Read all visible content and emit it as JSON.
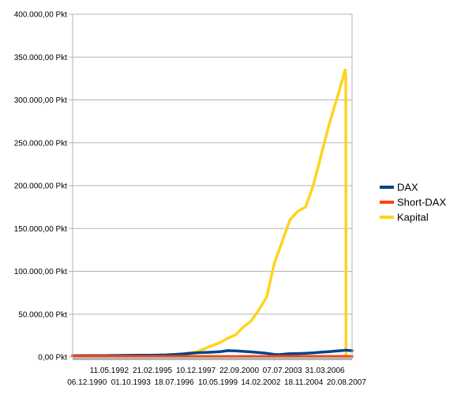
{
  "chart_data": {
    "type": "line",
    "title": "",
    "xlabel": "",
    "ylabel": "",
    "ylim": [
      0,
      400000
    ],
    "y_ticks": [
      "0,00 Pkt",
      "50.000,00 Pkt",
      "100.000,00 Pkt",
      "150.000,00 Pkt",
      "200.000,00 Pkt",
      "250.000,00 Pkt",
      "300.000,00 Pkt",
      "350.000,00 Pkt",
      "400.000,00 Pkt"
    ],
    "y_tick_values": [
      0,
      50000,
      100000,
      150000,
      200000,
      250000,
      300000,
      350000,
      400000
    ],
    "x_ticks_row1": [
      "11.05.1992",
      "21.02.1995",
      "10.12.1997",
      "22.09.2000",
      "07.07.2003",
      "31.03.2006"
    ],
    "x_ticks_row2": [
      "06.12.1990",
      "01.10.1993",
      "18.07.1996",
      "10.05.1999",
      "14.02.2002",
      "18.11.2004",
      "20.08.2007"
    ],
    "x_tick_years_row1": [
      1992.36,
      1995.14,
      1997.94,
      2000.73,
      2003.51,
      2006.25
    ],
    "x_tick_years_row2": [
      1990.93,
      1993.75,
      1996.54,
      1999.36,
      2002.12,
      2004.88,
      2007.64
    ],
    "x_range": [
      1990.0,
      2008.0
    ],
    "legend_position": "right",
    "x": [
      1990.0,
      1991.0,
      1992.0,
      1993.0,
      1994.0,
      1995.0,
      1996.0,
      1997.0,
      1998.0,
      1998.8,
      1999.5,
      2000.0,
      2000.5,
      2001.0,
      2001.5,
      2002.0,
      2002.5,
      2003.0,
      2003.3,
      2003.6,
      2004.0,
      2004.5,
      2005.0,
      2005.5,
      2006.0,
      2006.5,
      2007.0,
      2007.4,
      2007.55,
      2007.6,
      2007.61,
      2008.0
    ],
    "series": [
      {
        "name": "DAX",
        "color": "#004586",
        "values": [
          1500,
          1600,
          1650,
          1800,
          2100,
          2100,
          2400,
          3500,
          5000,
          5500,
          6200,
          7500,
          7200,
          6500,
          6000,
          5200,
          4300,
          3000,
          2800,
          3300,
          3900,
          4100,
          4300,
          4900,
          5600,
          6200,
          7000,
          7600,
          8000,
          7900,
          7900,
          7400
        ]
      },
      {
        "name": "Short-DAX",
        "color": "#ff420e",
        "values": [
          1000,
          950,
          900,
          850,
          800,
          780,
          750,
          700,
          650,
          600,
          570,
          550,
          560,
          600,
          650,
          700,
          780,
          850,
          870,
          850,
          830,
          820,
          800,
          780,
          750,
          720,
          700,
          690,
          680,
          680,
          680,
          680
        ]
      },
      {
        "name": "Kapital",
        "color": "#ffd320",
        "values": [
          1000,
          1100,
          1300,
          1500,
          1700,
          2000,
          2500,
          3500,
          6000,
          12000,
          17000,
          22000,
          26000,
          35000,
          42000,
          55000,
          70000,
          110000,
          125000,
          140000,
          160000,
          170000,
          175000,
          200000,
          235000,
          270000,
          300000,
          325000,
          335000,
          330000,
          0,
          0
        ]
      }
    ]
  }
}
